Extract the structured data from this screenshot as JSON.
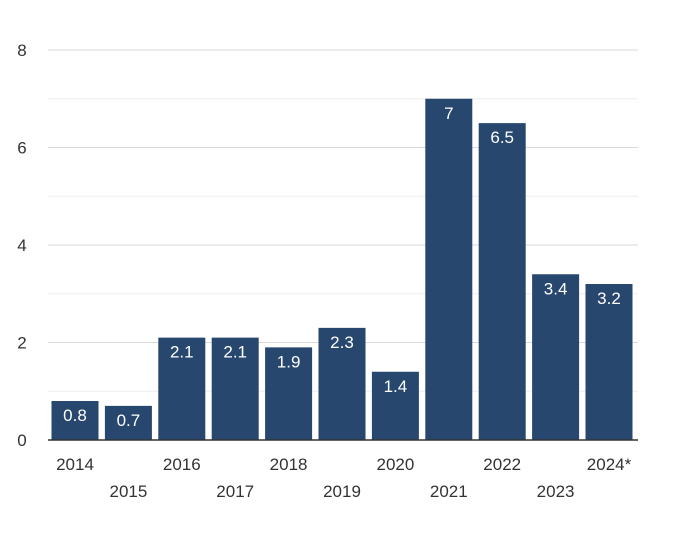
{
  "chart_data": {
    "type": "bar",
    "categories": [
      "2014",
      "2015",
      "2016",
      "2017",
      "2018",
      "2019",
      "2020",
      "2021",
      "2022",
      "2023",
      "2024*"
    ],
    "values": [
      0.8,
      0.7,
      2.1,
      2.1,
      1.9,
      2.3,
      1.4,
      7,
      6.5,
      3.4,
      3.2
    ],
    "data_labels": [
      "0.8",
      "0.7",
      "2.1",
      "2.1",
      "1.9",
      "2.3",
      "1.4",
      "7",
      "6.5",
      "3.4",
      "3.2"
    ],
    "y_ticks": [
      0,
      2,
      4,
      6,
      8
    ],
    "y_tick_labels": [
      "0",
      "2",
      "4",
      "6",
      "8"
    ],
    "ylim": [
      0,
      8
    ],
    "minor_grid_step": 1,
    "grid": true,
    "legend": "none",
    "x_labels_staggered": true,
    "bar_color": "#27476e",
    "grid_color": "#d9d9d9",
    "minor_grid_color": "#eeeeee",
    "axis_color": "#333333",
    "text_color": "#333333"
  }
}
